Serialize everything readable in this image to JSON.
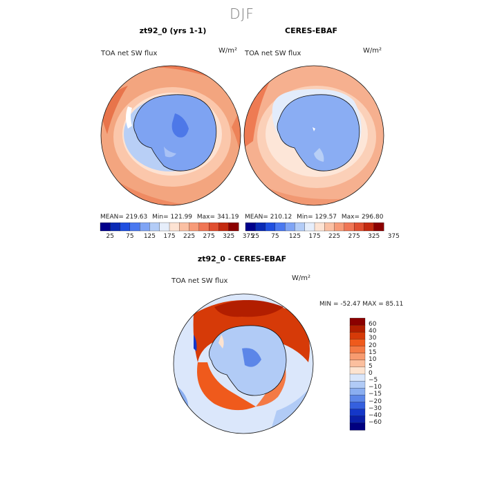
{
  "title": "DJF",
  "panels": [
    {
      "title": "zt92_0 (yrs 1-1)",
      "variable": "TOA net SW flux",
      "units": "W/m²",
      "mean_label": "MEAN=",
      "mean": "219.63",
      "min_label": "Min=",
      "min": "121.99",
      "max_label": "Max=",
      "max": "341.19"
    },
    {
      "title": "CERES-EBAF",
      "variable": "TOA net SW flux",
      "units": "W/m²",
      "mean_label": "MEAN=",
      "mean": "210.12",
      "min_label": "Min=",
      "min": "129.57",
      "max_label": "Max=",
      "max": "296.80"
    }
  ],
  "diff": {
    "title": "zt92_0 - CERES-EBAF",
    "variable": "TOA net SW flux",
    "units": "W/m²",
    "stats_text": "MIN = -52.47 MAX =  85.11"
  },
  "colorbar_abs": {
    "ticks": [
      "25",
      "75",
      "125",
      "175",
      "225",
      "275",
      "325",
      "375"
    ],
    "colors": [
      "#00008b",
      "#0a2ab5",
      "#1f4fe0",
      "#4a78f0",
      "#7fa4f5",
      "#b3ccf7",
      "#e6eefb",
      "#fde3d3",
      "#fbc0a3",
      "#f79b78",
      "#f07655",
      "#e04f30",
      "#c42a10",
      "#8b0000"
    ]
  },
  "colorbar_diff": {
    "ticks": [
      "60",
      "40",
      "30",
      "20",
      "15",
      "10",
      "5",
      "0",
      "−5",
      "−10",
      "−15",
      "−20",
      "−30",
      "−40",
      "−60"
    ],
    "colors": [
      "#8b0000",
      "#b21e00",
      "#d63a08",
      "#ef5a1c",
      "#f47a45",
      "#f79b70",
      "#fbbf9e",
      "#fde3d0",
      "#ffffff",
      "#d9e6fb",
      "#b1cbf6",
      "#8aaef0",
      "#5c86e8",
      "#3560de",
      "#1437c8",
      "#0a1fa8",
      "#000080"
    ]
  },
  "chart_data": [
    {
      "type": "heatmap",
      "projection": "south-polar-stereographic",
      "title": "zt92_0 (yrs 1-1)",
      "variable": "TOA net SW flux",
      "units": "W/m²",
      "mean": 219.63,
      "min": 121.99,
      "max": 341.19,
      "colorbar_range": [
        25,
        375
      ],
      "colorbar_ticks": [
        25,
        75,
        125,
        175,
        225,
        275,
        325,
        375
      ]
    },
    {
      "type": "heatmap",
      "projection": "south-polar-stereographic",
      "title": "CERES-EBAF",
      "variable": "TOA net SW flux",
      "units": "W/m²",
      "mean": 210.12,
      "min": 129.57,
      "max": 296.8,
      "colorbar_range": [
        25,
        375
      ],
      "colorbar_ticks": [
        25,
        75,
        125,
        175,
        225,
        275,
        325,
        375
      ]
    },
    {
      "type": "heatmap",
      "projection": "south-polar-stereographic",
      "title": "zt92_0 - CERES-EBAF",
      "variable": "TOA net SW flux",
      "units": "W/m²",
      "min": -52.47,
      "max": 85.11,
      "colorbar_levels": [
        -60,
        -40,
        -30,
        -20,
        -15,
        -10,
        -5,
        0,
        5,
        10,
        15,
        20,
        30,
        40,
        60
      ]
    }
  ]
}
